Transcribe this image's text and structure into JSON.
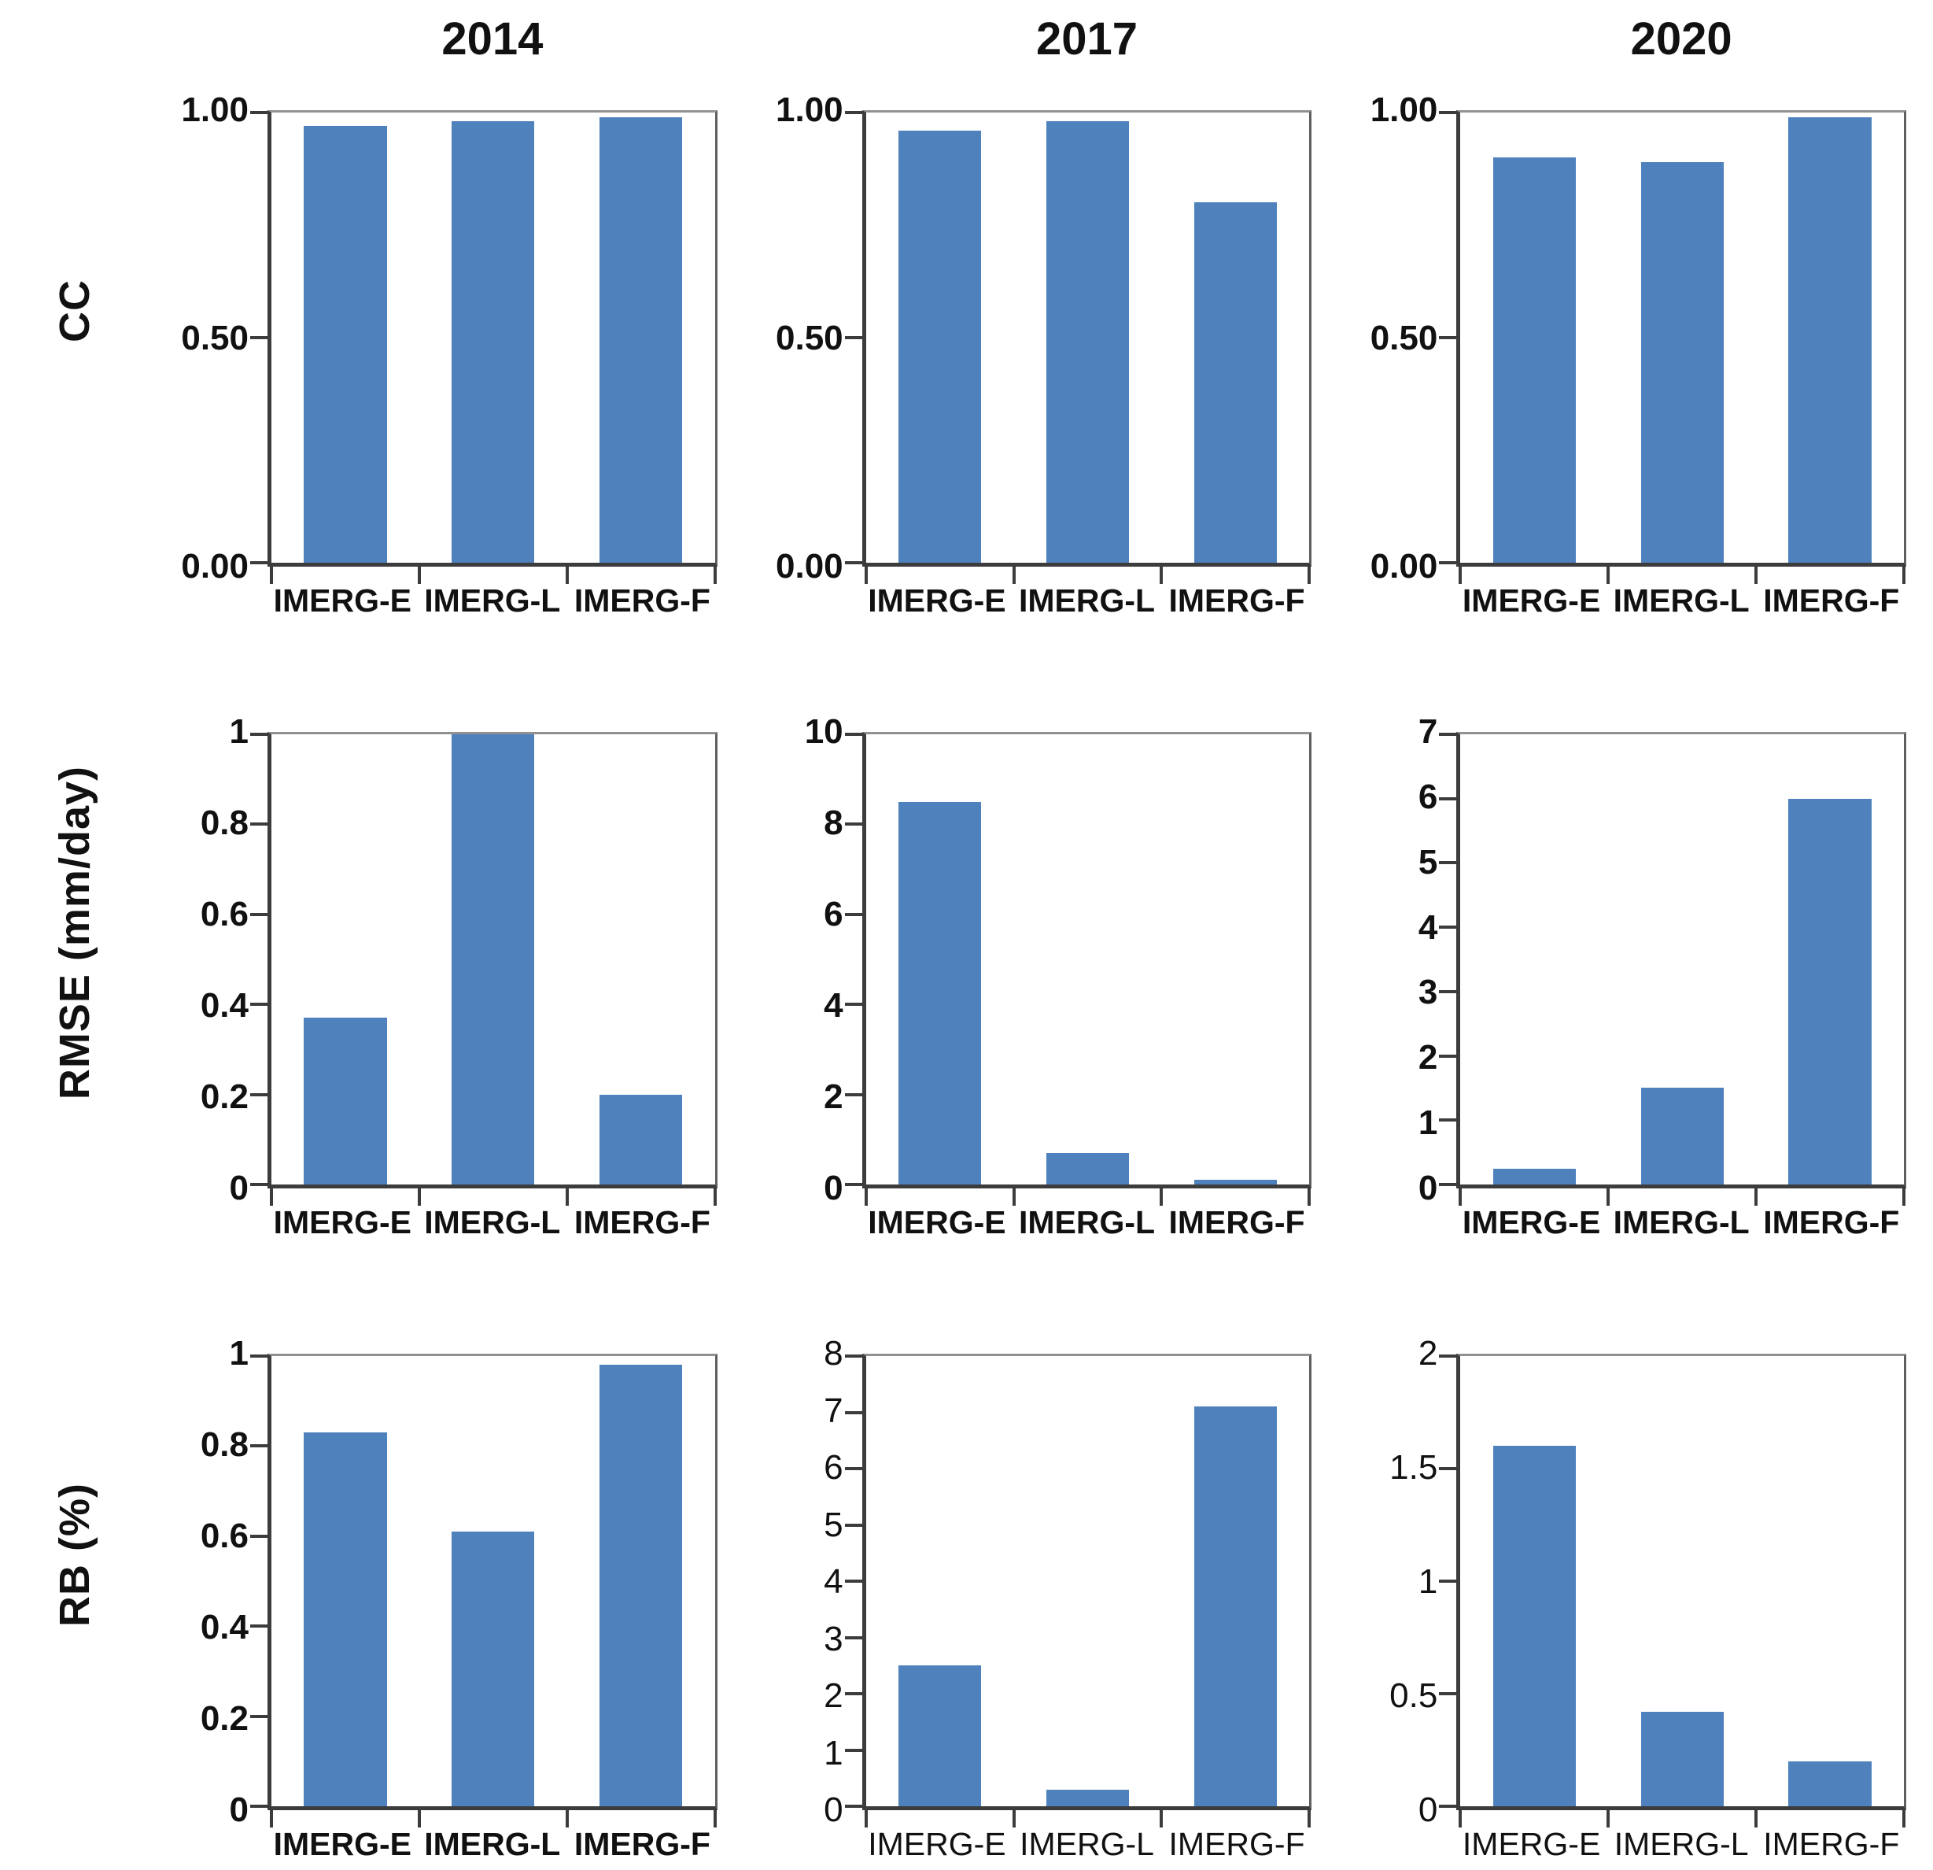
{
  "figure": {
    "column_titles": [
      "2014",
      "2017",
      "2020"
    ],
    "row_axis_titles": [
      "CC",
      "RMSE (mm/day)",
      "RB (%)"
    ],
    "bar_color": "#4f81bd",
    "axis_color": "#3c3c3c"
  },
  "chart_data": {
    "type": "bar",
    "columns": [
      "2014",
      "2017",
      "2020"
    ],
    "rows": [
      "CC",
      "RMSE (mm/day)",
      "RB (%)"
    ],
    "categories": [
      "IMERG-E",
      "IMERG-L",
      "IMERG-F"
    ],
    "legend_position": "none",
    "grid": false,
    "panels": [
      {
        "metric": "CC",
        "year": "2014",
        "values": [
          0.97,
          0.98,
          0.99
        ],
        "ymax": 1,
        "ylim": [
          0,
          1
        ],
        "ytick_labels": [
          "1.00",
          "0.50",
          "0.00"
        ],
        "bold_labels": true
      },
      {
        "metric": "CC",
        "year": "2017",
        "values": [
          0.96,
          0.98,
          0.8
        ],
        "ymax": 1,
        "ylim": [
          0,
          1
        ],
        "ytick_labels": [
          "1.00",
          "0.50",
          "0.00"
        ],
        "bold_labels": true
      },
      {
        "metric": "CC",
        "year": "2020",
        "values": [
          0.9,
          0.89,
          0.99
        ],
        "ymax": 1,
        "ylim": [
          0,
          1
        ],
        "ytick_labels": [
          "1.00",
          "0.50",
          "0.00"
        ],
        "bold_labels": true
      },
      {
        "metric": "RMSE (mm/day)",
        "year": "2014",
        "values": [
          0.37,
          1.0,
          0.2
        ],
        "ymax": 1,
        "ylim": [
          0,
          1
        ],
        "ytick_labels": [
          "1",
          "0.8",
          "0.6",
          "0.4",
          "0.2",
          "0"
        ],
        "bold_labels": true
      },
      {
        "metric": "RMSE (mm/day)",
        "year": "2017",
        "values": [
          8.5,
          0.7,
          0.1
        ],
        "ymax": 10,
        "ylim": [
          0,
          10
        ],
        "ytick_labels": [
          "10",
          "8",
          "6",
          "4",
          "2",
          "0"
        ],
        "bold_labels": true
      },
      {
        "metric": "RMSE (mm/day)",
        "year": "2020",
        "values": [
          0.25,
          1.5,
          6.0
        ],
        "ymax": 7,
        "ylim": [
          0,
          7
        ],
        "ytick_labels": [
          "7",
          "6",
          "5",
          "4",
          "3",
          "2",
          "1",
          "0"
        ],
        "bold_labels": true
      },
      {
        "metric": "RB (%)",
        "year": "2014",
        "values": [
          0.83,
          0.61,
          0.98
        ],
        "ymax": 1,
        "ylim": [
          0,
          1
        ],
        "ytick_labels": [
          "1",
          "0.8",
          "0.6",
          "0.4",
          "0.2",
          "0"
        ],
        "bold_labels": true
      },
      {
        "metric": "RB (%)",
        "year": "2017",
        "values": [
          2.5,
          0.3,
          7.1
        ],
        "ymax": 8,
        "ylim": [
          0,
          8
        ],
        "ytick_labels": [
          "8",
          "7",
          "6",
          "5",
          "4",
          "3",
          "2",
          "1",
          "0"
        ],
        "bold_labels": false
      },
      {
        "metric": "RB (%)",
        "year": "2020",
        "values": [
          1.6,
          0.42,
          0.2
        ],
        "ymax": 2,
        "ylim": [
          0,
          2
        ],
        "ytick_labels": [
          "2",
          "1.5",
          "1",
          "0.5",
          "0"
        ],
        "bold_labels": false
      }
    ]
  }
}
